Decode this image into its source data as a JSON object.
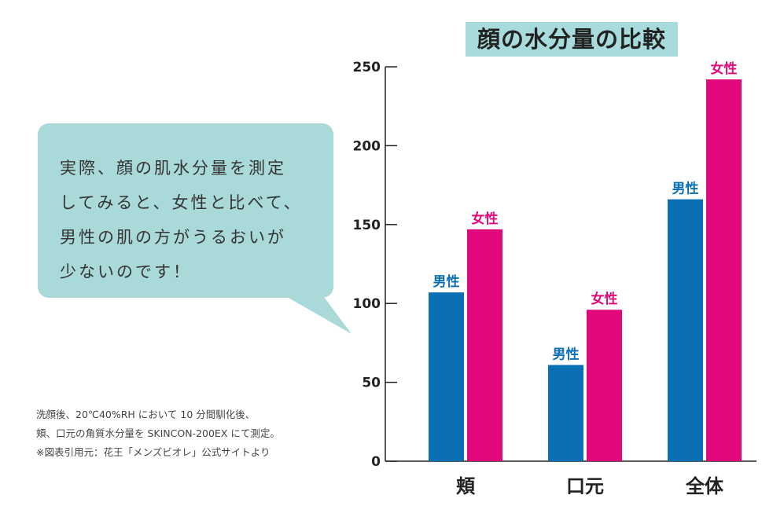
{
  "chart_data": {
    "type": "bar",
    "title": "顔の水分量の比較",
    "categories": [
      "頬",
      "口元",
      "全体"
    ],
    "series": [
      {
        "name": "男性",
        "color": "#0a6fb5",
        "values": [
          107,
          61,
          166
        ],
        "labels": [
          "男性",
          "男性",
          "男性"
        ]
      },
      {
        "name": "女性",
        "color": "#e0087a",
        "values": [
          147,
          96,
          242
        ],
        "labels": [
          "女性",
          "女性",
          "女性"
        ]
      }
    ],
    "yticks": [
      0,
      50,
      100,
      150,
      200,
      250
    ],
    "ylim": [
      0,
      250
    ],
    "xlabel": "",
    "ylabel": "",
    "grid": false
  },
  "speech": {
    "lines": [
      "実際、顔の肌水分量を測定",
      "してみると、女性と比べて、",
      "男性の肌の方がうるおいが",
      "少ないのです！"
    ]
  },
  "footnote": {
    "lines": [
      "洗顔後、20℃40%RH において 10 分間馴化後、",
      "頬、口元の角質水分量を SKINCON-200EX にて測定。",
      "※図表引用元：花王「メンズビオレ」公式サイトより"
    ]
  },
  "colors": {
    "bubble": "#a9d9d9",
    "title_bg": "#a8dcdc",
    "male": "#0a6fb5",
    "female": "#e0087a"
  }
}
